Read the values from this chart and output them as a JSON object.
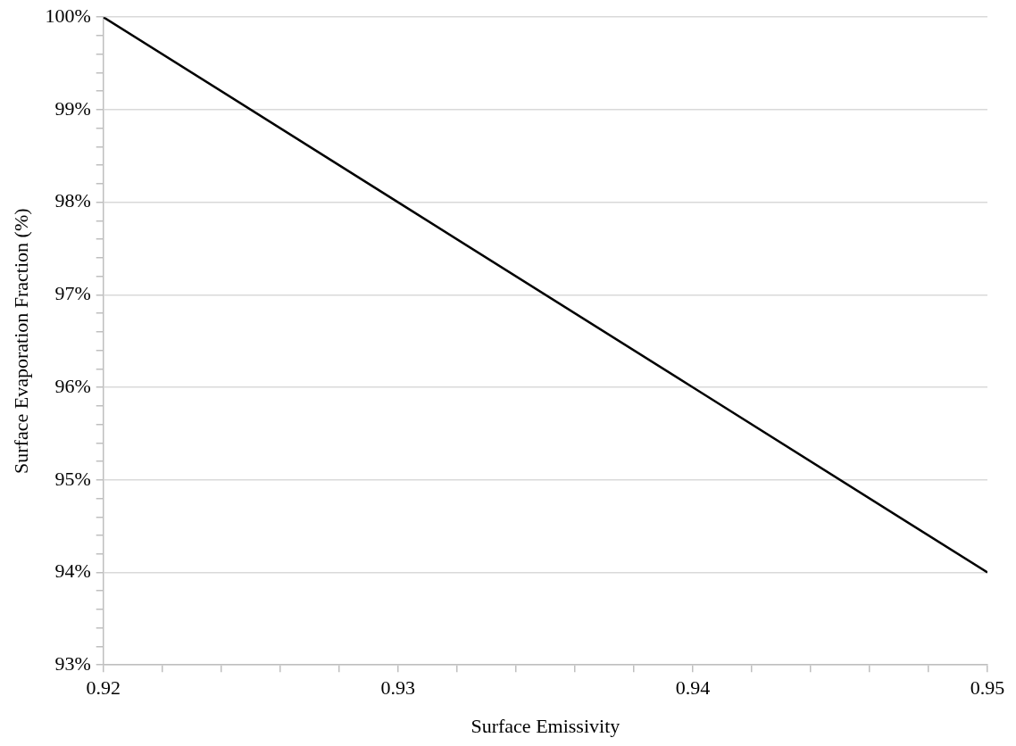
{
  "chart_data": {
    "type": "line",
    "xlabel": "Surface Emissivity",
    "ylabel": "Surface Evaporation Fraction (%)",
    "x": [
      0.92,
      0.93,
      0.94,
      0.95
    ],
    "series": [
      {
        "color": "#000000",
        "values": [
          100,
          98,
          96,
          94
        ]
      }
    ],
    "xlim": [
      0.92,
      0.95
    ],
    "ylim": [
      93,
      100
    ],
    "xticks": [
      0.92,
      {
        "value": 0.922,
        "label": null
      },
      {
        "value": 0.924,
        "label": null
      },
      {
        "value": 0.926,
        "label": null
      },
      {
        "value": 0.928,
        "label": null
      },
      0.93,
      {
        "value": 0.932,
        "label": null
      },
      {
        "value": 0.934,
        "label": null
      },
      {
        "value": 0.936,
        "label": null
      },
      {
        "value": 0.938,
        "label": null
      },
      0.94,
      {
        "value": 0.942,
        "label": null
      },
      {
        "value": 0.944,
        "label": null
      },
      {
        "value": 0.946,
        "label": null
      },
      {
        "value": 0.948,
        "label": null
      },
      0.95
    ],
    "yticks": [
      {
        "value": 93,
        "label": "93%"
      },
      {
        "value": 93.2,
        "label": null
      },
      {
        "value": 93.4,
        "label": null
      },
      {
        "value": 93.6,
        "label": null
      },
      {
        "value": 93.8,
        "label": null
      },
      {
        "value": 94,
        "label": "94%"
      },
      {
        "value": 94.2,
        "label": null
      },
      {
        "value": 94.4,
        "label": null
      },
      {
        "value": 94.6,
        "label": null
      },
      {
        "value": 94.8,
        "label": null
      },
      {
        "value": 95,
        "label": "95%"
      },
      {
        "value": 95.2,
        "label": null
      },
      {
        "value": 95.4,
        "label": null
      },
      {
        "value": 95.6,
        "label": null
      },
      {
        "value": 95.8,
        "label": null
      },
      {
        "value": 96,
        "label": "96%"
      },
      {
        "value": 96.2,
        "label": null
      },
      {
        "value": 96.4,
        "label": null
      },
      {
        "value": 96.6,
        "label": null
      },
      {
        "value": 96.8,
        "label": null
      },
      {
        "value": 97,
        "label": "97%"
      },
      {
        "value": 97.2,
        "label": null
      },
      {
        "value": 97.4,
        "label": null
      },
      {
        "value": 97.6,
        "label": null
      },
      {
        "value": 97.8,
        "label": null
      },
      {
        "value": 98,
        "label": "98%"
      },
      {
        "value": 98.2,
        "label": null
      },
      {
        "value": 98.4,
        "label": null
      },
      {
        "value": 98.6,
        "label": null
      },
      {
        "value": 98.8,
        "label": null
      },
      {
        "value": 99,
        "label": "99%"
      },
      {
        "value": 99.2,
        "label": null
      },
      {
        "value": 99.4,
        "label": null
      },
      {
        "value": 99.6,
        "label": null
      },
      {
        "value": 99.8,
        "label": null
      },
      {
        "value": 100,
        "label": "100%"
      }
    ],
    "grid": "y",
    "marker": "none",
    "line_style": "solid"
  }
}
